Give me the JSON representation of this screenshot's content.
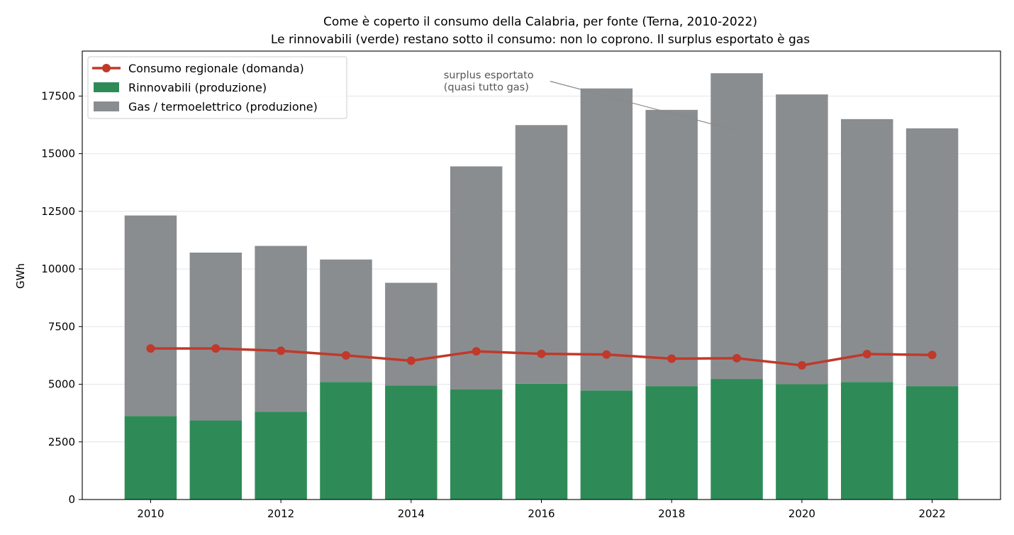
{
  "chart_data": {
    "type": "bar",
    "title": "Come è coperto il consumo della Calabria, per fonte (Terna, 2010-2022)",
    "subtitle": "Le rinnovabili (verde) restano sotto il consumo: non lo coprono. Il surplus esportato è gas",
    "xlabel": "",
    "ylabel": "GWh",
    "x": [
      2010,
      2011,
      2012,
      2013,
      2014,
      2015,
      2016,
      2017,
      2018,
      2019,
      2020,
      2021,
      2022
    ],
    "xlim": [
      2008.95,
      2023.05
    ],
    "ylim": [
      0,
      19450
    ],
    "x_ticks": [
      2010,
      2012,
      2014,
      2016,
      2018,
      2020,
      2022
    ],
    "y_ticks": [
      0,
      2500,
      5000,
      7500,
      10000,
      12500,
      15000,
      17500
    ],
    "grid": "horizontal",
    "legend_position": "top-left",
    "series": [
      {
        "name": "Consumo regionale (domanda)",
        "kind": "line",
        "color": "#c0392b",
        "values": [
          6550,
          6550,
          6450,
          6250,
          6020,
          6430,
          6320,
          6290,
          6110,
          6130,
          5820,
          6310,
          6270
        ]
      },
      {
        "name": "Rinnovabili (produzione)",
        "kind": "bar",
        "color": "#2e8b57",
        "values": [
          3620,
          3430,
          3800,
          5100,
          4950,
          4770,
          5020,
          4730,
          4920,
          5230,
          5000,
          5100,
          4920
        ]
      },
      {
        "name": "Gas / termoelettrico (produzione)",
        "kind": "bar",
        "color": "#8a8d90",
        "values": [
          8700,
          7280,
          7200,
          5310,
          4450,
          9680,
          11220,
          13100,
          11980,
          13260,
          12570,
          11400,
          11180
        ]
      }
    ],
    "annotation": {
      "lines": [
        "surplus esportato",
        "(quasi tutto gas)"
      ],
      "text_at": [
        2014.5,
        17650
      ],
      "arrow_to": [
        2019.0,
        16000
      ]
    }
  }
}
